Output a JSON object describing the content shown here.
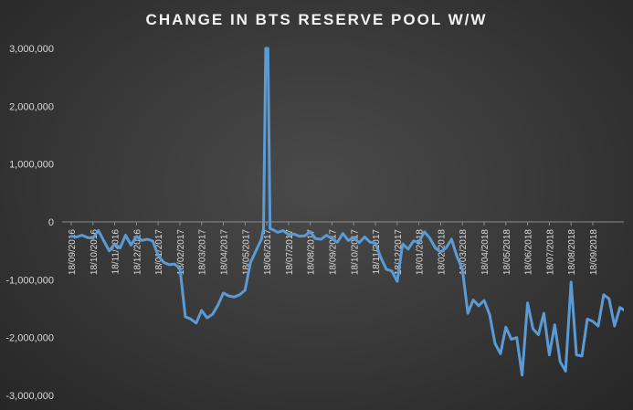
{
  "chart_data": {
    "type": "line",
    "title": "CHANGE IN BTS RESERVE POOL W/W",
    "xlabel": "",
    "ylabel": "",
    "ylim": [
      -3000000,
      3000000
    ],
    "grid": false,
    "legend": "none",
    "y_ticks": [
      "3,000,000",
      "2,000,000",
      "1,000,000",
      "0",
      "-1,000,000",
      "-2,000,000",
      "-3,000,000"
    ],
    "y_tick_values": [
      3000000,
      2000000,
      1000000,
      0,
      -1000000,
      -2000000,
      -3000000
    ],
    "x_tick_labels": [
      "18/09/2016",
      "18/10/2016",
      "18/11/2016",
      "18/12/2016",
      "18/01/2017",
      "18/02/2017",
      "18/03/2017",
      "18/04/2017",
      "18/05/2017",
      "18/06/2017",
      "18/07/2017",
      "18/08/2017",
      "18/09/2017",
      "18/10/2017",
      "18/11/2017",
      "18/12/2017",
      "18/01/2018",
      "18/02/2018",
      "18/03/2018",
      "18/04/2018",
      "18/05/2018",
      "18/06/2018",
      "18/07/2018",
      "18/08/2018",
      "18/09/2018"
    ],
    "x_range_months": [
      0,
      24.8
    ],
    "line_color": "#5b9bd5",
    "series": [
      {
        "values": [
          [
            0.0,
            -250000
          ],
          [
            0.25,
            -260000
          ],
          [
            0.5,
            -230000
          ],
          [
            0.75,
            -270000
          ],
          [
            1.0,
            -280000
          ],
          [
            1.25,
            -150000
          ],
          [
            1.5,
            -330000
          ],
          [
            1.75,
            -500000
          ],
          [
            2.0,
            -380000
          ],
          [
            2.25,
            -450000
          ],
          [
            2.5,
            -230000
          ],
          [
            2.75,
            -400000
          ],
          [
            3.0,
            -250000
          ],
          [
            3.25,
            -320000
          ],
          [
            3.5,
            -300000
          ],
          [
            3.75,
            -330000
          ],
          [
            4.0,
            -580000
          ],
          [
            4.25,
            -700000
          ],
          [
            4.5,
            -740000
          ],
          [
            4.75,
            -730000
          ],
          [
            5.0,
            -800000
          ],
          [
            5.25,
            -1640000
          ],
          [
            5.5,
            -1680000
          ],
          [
            5.75,
            -1750000
          ],
          [
            6.0,
            -1530000
          ],
          [
            6.25,
            -1660000
          ],
          [
            6.5,
            -1600000
          ],
          [
            6.75,
            -1440000
          ],
          [
            7.0,
            -1230000
          ],
          [
            7.25,
            -1280000
          ],
          [
            7.5,
            -1300000
          ],
          [
            7.75,
            -1260000
          ],
          [
            8.0,
            -1180000
          ],
          [
            8.25,
            -700000
          ],
          [
            8.5,
            -500000
          ],
          [
            8.75,
            -300000
          ],
          [
            8.85,
            -120000
          ],
          [
            8.95,
            3000000
          ],
          [
            9.05,
            3000000
          ],
          [
            9.15,
            -120000
          ],
          [
            9.25,
            -130000
          ],
          [
            9.5,
            -180000
          ],
          [
            9.75,
            -150000
          ],
          [
            10.0,
            -220000
          ],
          [
            10.25,
            -210000
          ],
          [
            10.5,
            -250000
          ],
          [
            10.75,
            -240000
          ],
          [
            11.0,
            -170000
          ],
          [
            11.25,
            -290000
          ],
          [
            11.5,
            -300000
          ],
          [
            11.75,
            -230000
          ],
          [
            12.0,
            -290000
          ],
          [
            12.25,
            -350000
          ],
          [
            12.5,
            -200000
          ],
          [
            12.75,
            -320000
          ],
          [
            13.0,
            -270000
          ],
          [
            13.25,
            -360000
          ],
          [
            13.5,
            -260000
          ],
          [
            13.75,
            -350000
          ],
          [
            14.0,
            -370000
          ],
          [
            14.25,
            -620000
          ],
          [
            14.5,
            -820000
          ],
          [
            14.75,
            -850000
          ],
          [
            15.0,
            -1030000
          ],
          [
            15.25,
            -380000
          ],
          [
            15.5,
            -470000
          ],
          [
            15.75,
            -330000
          ],
          [
            16.0,
            -350000
          ],
          [
            16.25,
            -170000
          ],
          [
            16.5,
            -280000
          ],
          [
            16.75,
            -450000
          ],
          [
            17.0,
            -520000
          ],
          [
            17.25,
            -450000
          ],
          [
            17.5,
            -300000
          ],
          [
            17.75,
            -600000
          ],
          [
            18.0,
            -820000
          ],
          [
            18.25,
            -1580000
          ],
          [
            18.5,
            -1350000
          ],
          [
            18.75,
            -1450000
          ],
          [
            19.0,
            -1360000
          ],
          [
            19.25,
            -1600000
          ],
          [
            19.5,
            -2100000
          ],
          [
            19.75,
            -2280000
          ],
          [
            20.0,
            -1820000
          ],
          [
            20.25,
            -2030000
          ],
          [
            20.5,
            -2000000
          ],
          [
            20.75,
            -2650000
          ],
          [
            21.0,
            -1400000
          ],
          [
            21.25,
            -1850000
          ],
          [
            21.5,
            -1950000
          ],
          [
            21.75,
            -1580000
          ],
          [
            22.0,
            -2300000
          ],
          [
            22.25,
            -1780000
          ],
          [
            22.5,
            -2420000
          ],
          [
            22.75,
            -2580000
          ],
          [
            23.0,
            -1040000
          ],
          [
            23.25,
            -2300000
          ],
          [
            23.5,
            -2320000
          ],
          [
            23.75,
            -1680000
          ],
          [
            24.0,
            -1720000
          ],
          [
            24.25,
            -1800000
          ],
          [
            24.5,
            -1260000
          ],
          [
            24.75,
            -1330000
          ],
          [
            25.0,
            -1800000
          ],
          [
            25.25,
            -1480000
          ],
          [
            25.5,
            -1540000
          ]
        ]
      }
    ]
  }
}
